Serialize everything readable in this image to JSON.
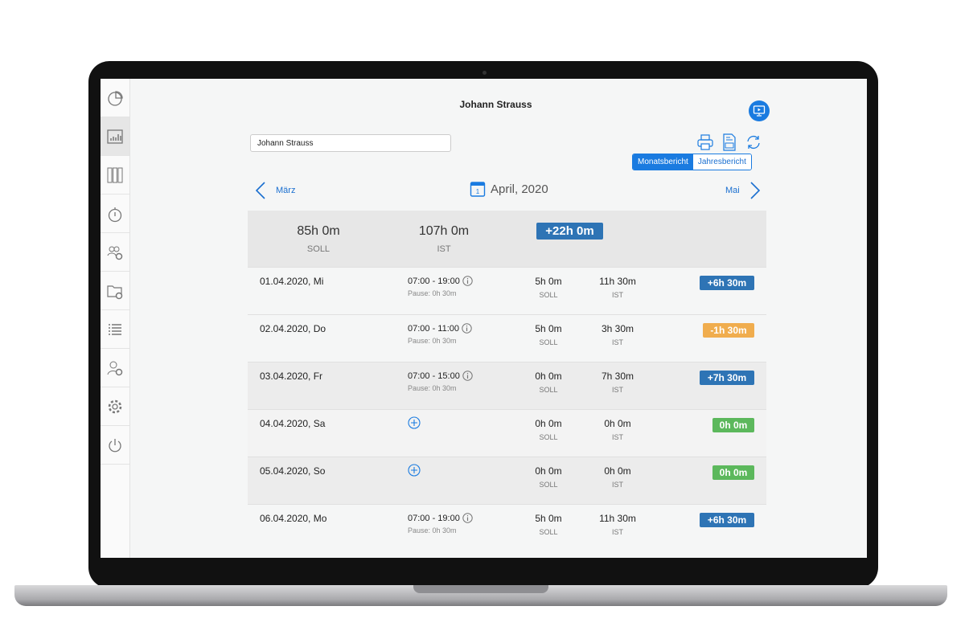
{
  "header": {
    "title": "Johann Strauss"
  },
  "employee_select": {
    "value": "Johann Strauss"
  },
  "toolbar": {
    "print_icon": "printer-icon",
    "csv_icon": "csv-file-icon",
    "refresh_icon": "refresh-icon",
    "video_icon": "monitor-play-icon"
  },
  "report_tabs": [
    {
      "label": "Monatsbericht",
      "active": true
    },
    {
      "label": "Jahresbericht",
      "active": false
    }
  ],
  "month_nav": {
    "prev": "März",
    "current": "April, 2020",
    "next": "Mai",
    "calendar_day": "1"
  },
  "summary": {
    "soll": "85h 0m",
    "soll_label": "SOLL",
    "ist": "107h 0m",
    "ist_label": "IST",
    "diff": "+22h 0m",
    "diff_color": "#2e74b5"
  },
  "sidebar": {
    "items": [
      "pie-chart-icon",
      "bar-chart-icon",
      "binders-icon",
      "stopwatch-icon",
      "users-settings-icon",
      "folder-settings-icon",
      "list-icon",
      "user-settings-icon",
      "gear-icon",
      "power-icon"
    ],
    "active": 1
  },
  "colors": {
    "positive": "#2e74b5",
    "negative": "#f0ad4e",
    "zero": "#5cb85c",
    "accent": "#1a7be0"
  },
  "rows": [
    {
      "date": "01.04.2020, Mi",
      "time": "07:00 - 19:00",
      "pause": "Pause: 0h 30m",
      "soll": "5h 0m",
      "soll_label": "SOLL",
      "ist": "11h 30m",
      "ist_label": "IST",
      "diff": "+6h 30m",
      "status": "positive"
    },
    {
      "date": "02.04.2020, Do",
      "time": "07:00 - 11:00",
      "pause": "Pause: 0h 30m",
      "soll": "5h 0m",
      "soll_label": "SOLL",
      "ist": "3h 30m",
      "ist_label": "IST",
      "diff": "-1h 30m",
      "status": "negative"
    },
    {
      "date": "03.04.2020, Fr",
      "time": "07:00 - 15:00",
      "pause": "Pause: 0h 30m",
      "soll": "0h 0m",
      "soll_label": "SOLL",
      "ist": "7h 30m",
      "ist_label": "IST",
      "diff": "+7h 30m",
      "status": "positive"
    },
    {
      "date": "04.04.2020, Sa",
      "time": null,
      "pause": null,
      "soll": "0h 0m",
      "soll_label": "SOLL",
      "ist": "0h 0m",
      "ist_label": "IST",
      "diff": "0h 0m",
      "status": "zero"
    },
    {
      "date": "05.04.2020, So",
      "time": null,
      "pause": null,
      "soll": "0h 0m",
      "soll_label": "SOLL",
      "ist": "0h 0m",
      "ist_label": "IST",
      "diff": "0h 0m",
      "status": "zero"
    },
    {
      "date": "06.04.2020, Mo",
      "time": "07:00 - 19:00",
      "pause": "Pause: 0h 30m",
      "soll": "5h 0m",
      "soll_label": "SOLL",
      "ist": "11h 30m",
      "ist_label": "IST",
      "diff": "+6h 30m",
      "status": "positive"
    }
  ]
}
